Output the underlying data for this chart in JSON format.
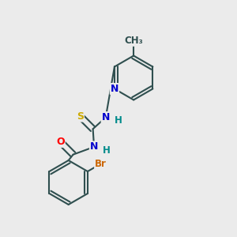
{
  "background_color": "#ebebeb",
  "bond_color": "#2f4f4f",
  "atom_colors": {
    "O": "#ff0000",
    "N": "#0000cd",
    "S": "#ccaa00",
    "Br": "#cc6600",
    "C": "#2f4f4f",
    "H": "#008b8b"
  },
  "figsize": [
    3.0,
    3.0
  ],
  "dpi": 100
}
